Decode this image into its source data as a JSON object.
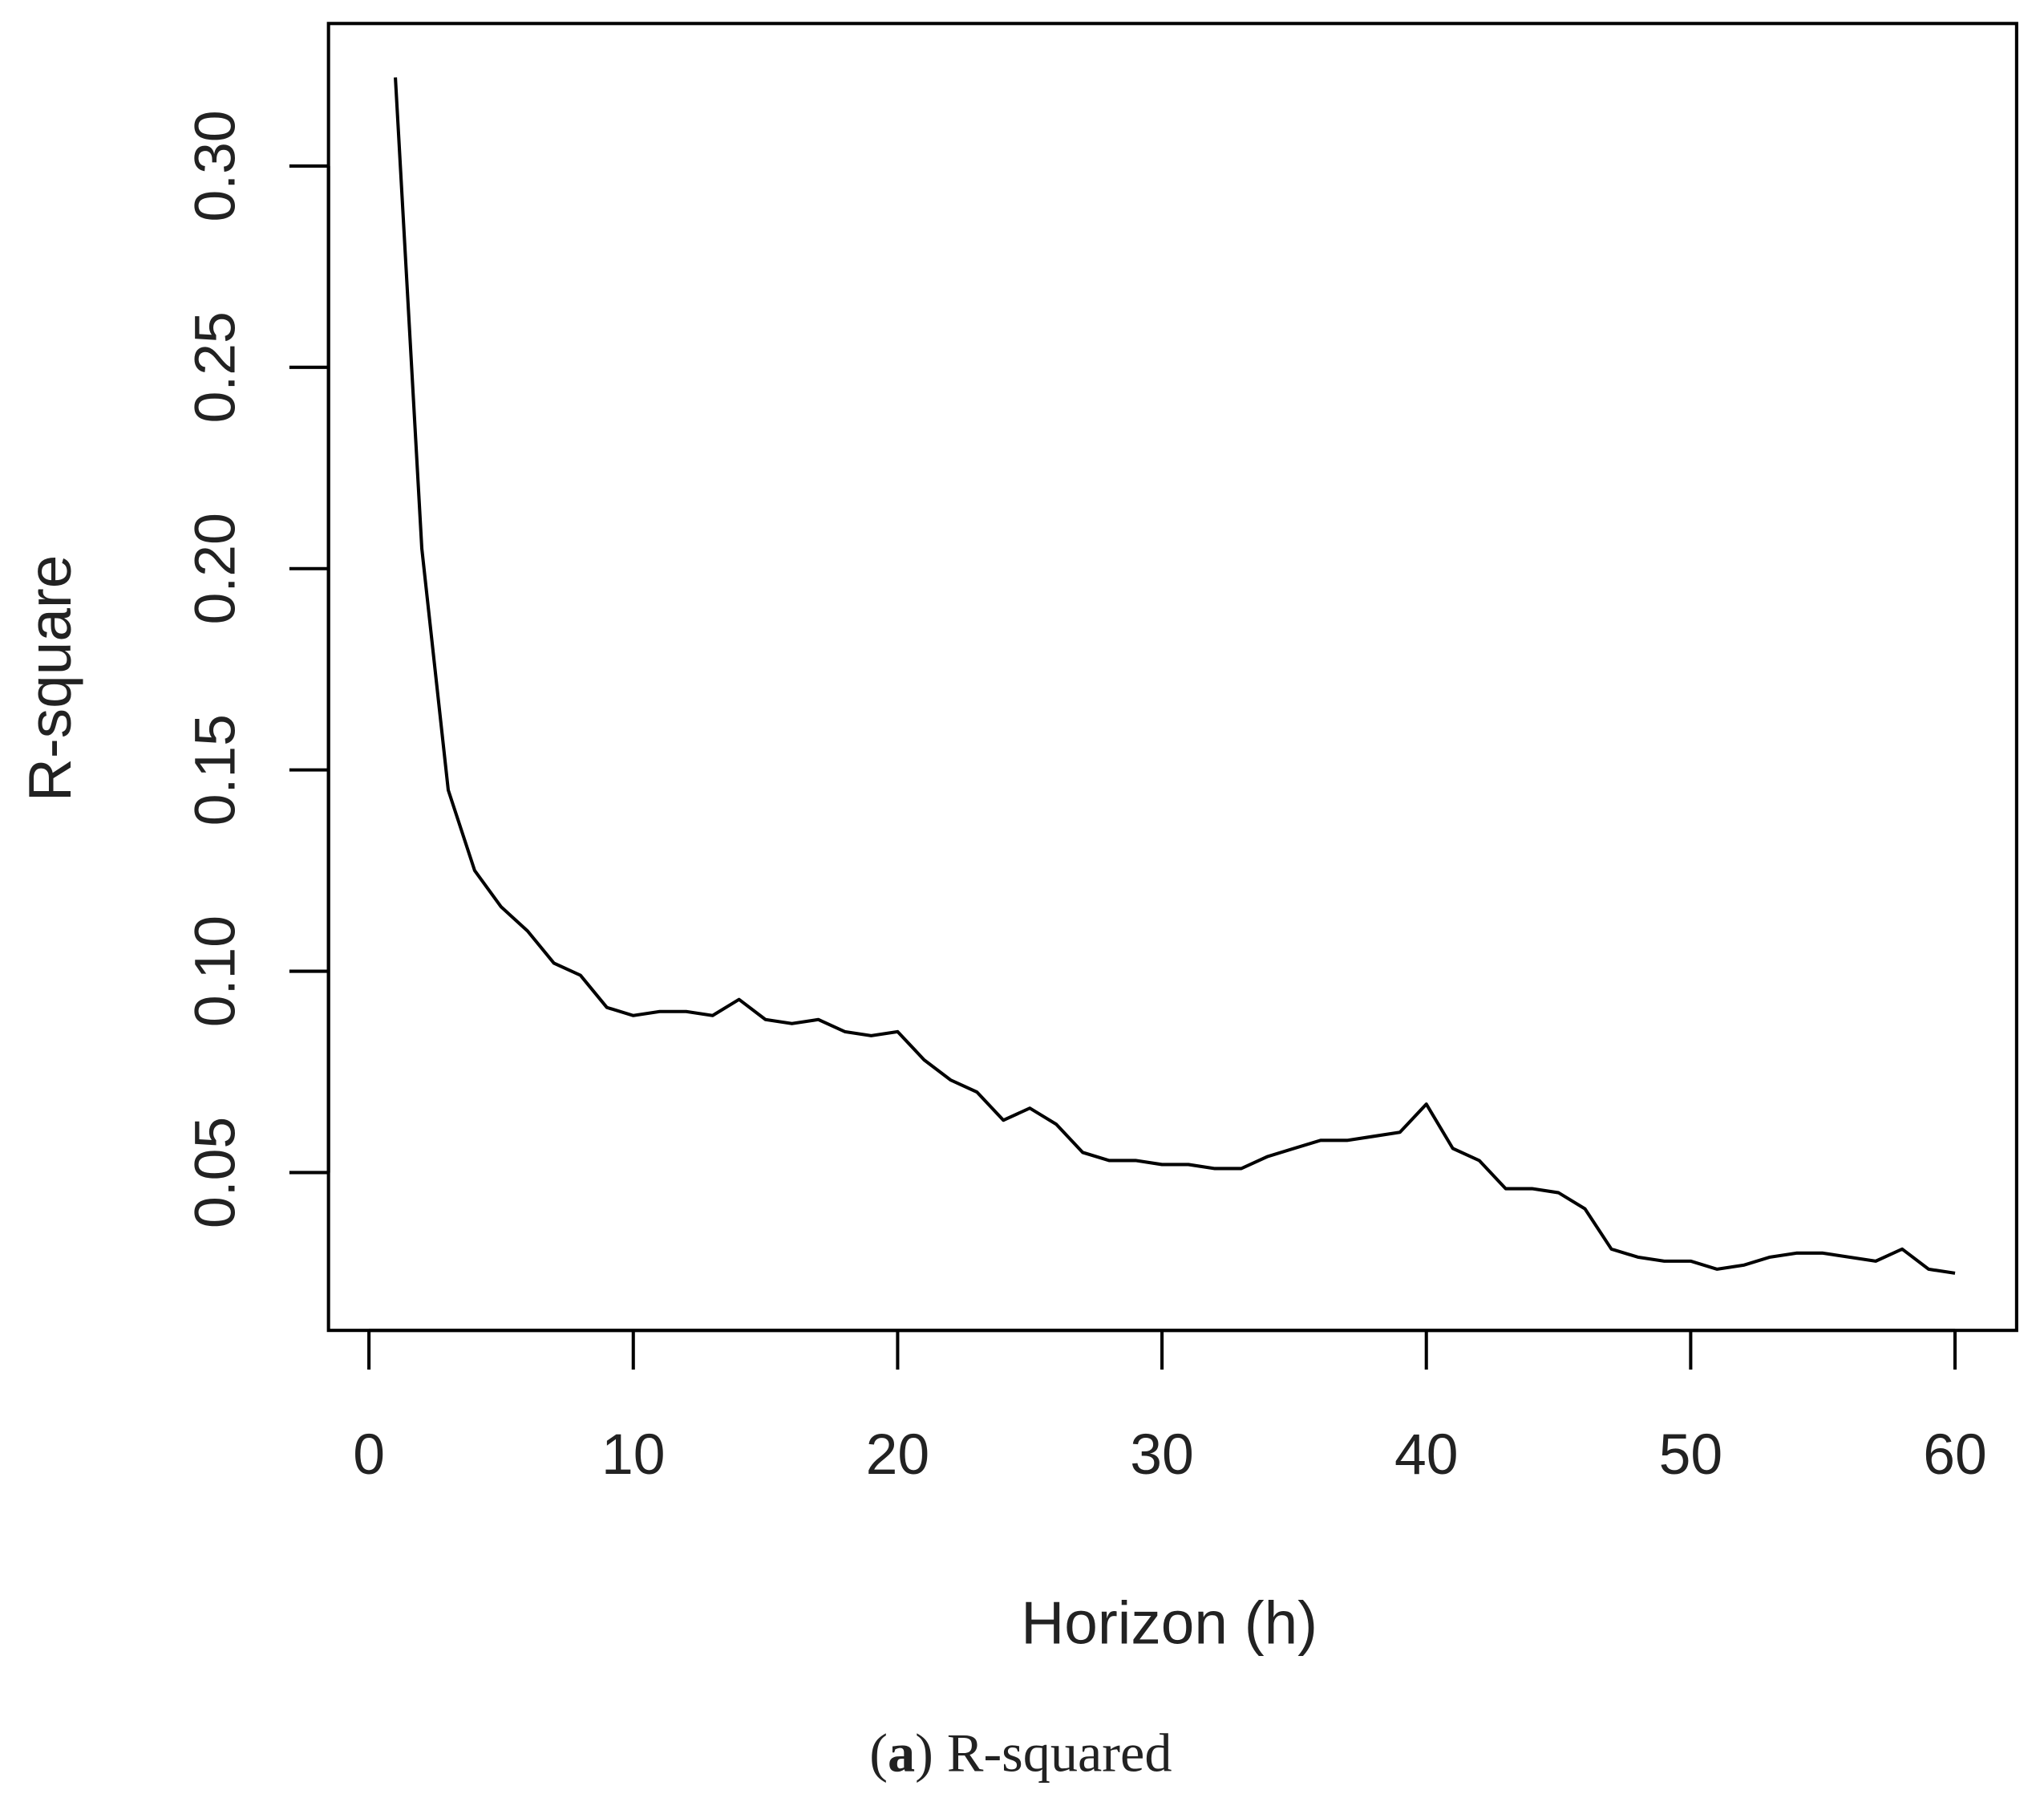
{
  "chart_data": {
    "type": "line",
    "x_label": "Horizon (h)",
    "y_label": "R-square",
    "caption": {
      "open": "(",
      "label": "a",
      "text": ") R-squared"
    },
    "x": [
      1,
      2,
      3,
      4,
      5,
      6,
      7,
      8,
      9,
      10,
      11,
      12,
      13,
      14,
      15,
      16,
      17,
      18,
      19,
      20,
      21,
      22,
      23,
      24,
      25,
      26,
      27,
      28,
      29,
      30,
      31,
      32,
      33,
      34,
      35,
      36,
      37,
      38,
      39,
      40,
      41,
      42,
      43,
      44,
      45,
      46,
      47,
      48,
      49,
      50,
      51,
      52,
      53,
      54,
      55,
      56,
      57,
      58,
      59,
      60
    ],
    "series": [
      {
        "name": "R-square",
        "color": "#000000",
        "values": [
          0.322,
          0.205,
          0.145,
          0.125,
          0.116,
          0.11,
          0.102,
          0.099,
          0.091,
          0.089,
          0.09,
          0.09,
          0.089,
          0.093,
          0.088,
          0.087,
          0.088,
          0.085,
          0.084,
          0.085,
          0.078,
          0.073,
          0.07,
          0.063,
          0.066,
          0.062,
          0.055,
          0.053,
          0.053,
          0.052,
          0.052,
          0.051,
          0.051,
          0.054,
          0.056,
          0.058,
          0.058,
          0.059,
          0.06,
          0.067,
          0.056,
          0.053,
          0.046,
          0.046,
          0.045,
          0.041,
          0.031,
          0.029,
          0.028,
          0.028,
          0.026,
          0.027,
          0.029,
          0.03,
          0.03,
          0.029,
          0.028,
          0.031,
          0.026,
          0.025
        ]
      }
    ],
    "xlim": [
      -1.53,
      62.33
    ],
    "ylim": [
      0.0108,
      0.3354
    ],
    "xticks": [
      0,
      10,
      20,
      30,
      40,
      50,
      60
    ],
    "yticks": [
      {
        "value": 0.05,
        "label": "0.05"
      },
      {
        "value": 0.1,
        "label": "0.10"
      },
      {
        "value": 0.15,
        "label": "0.15"
      },
      {
        "value": 0.2,
        "label": "0.20"
      },
      {
        "value": 0.25,
        "label": "0.25"
      },
      {
        "value": 0.3,
        "label": "0.30"
      }
    ]
  }
}
